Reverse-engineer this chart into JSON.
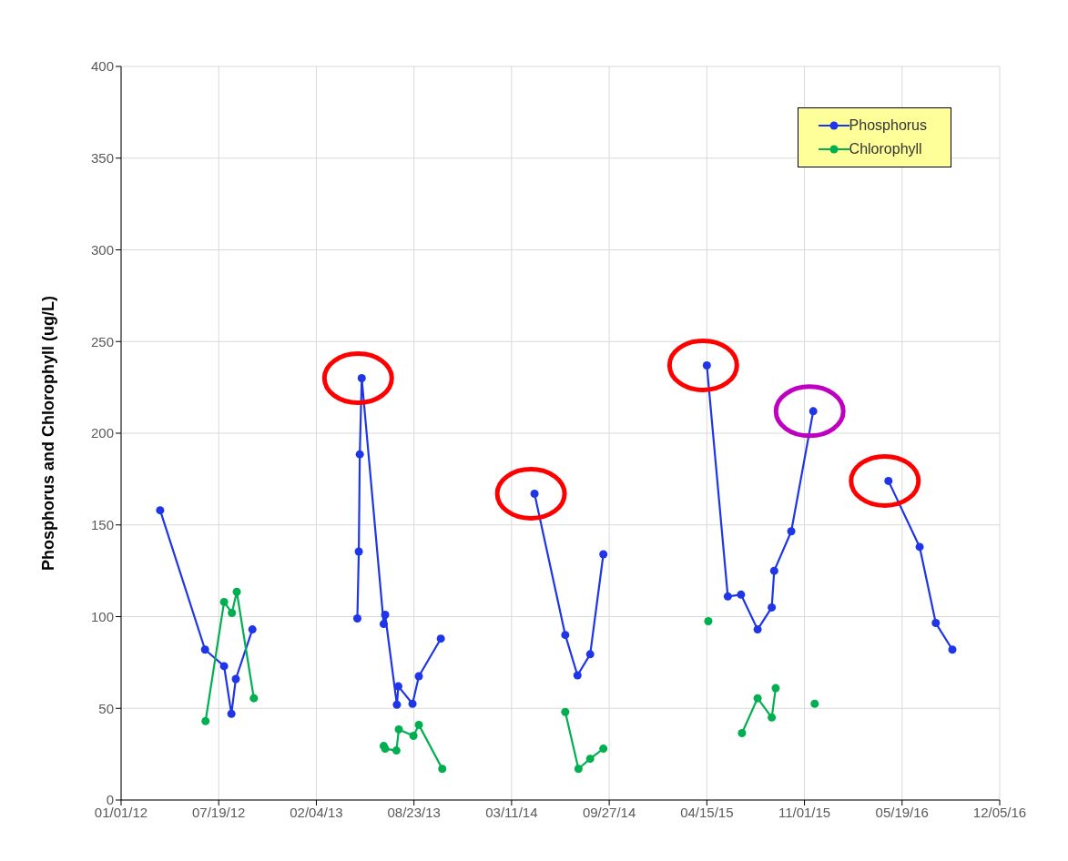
{
  "chart_data": {
    "type": "line",
    "ylabel": "Phosphorus and Chlorophyll (ug/L)",
    "ylim": [
      0,
      400
    ],
    "yticks": [
      0,
      50,
      100,
      150,
      200,
      250,
      300,
      350,
      400
    ],
    "xlim": [
      "2012-01-01",
      "2016-12-05"
    ],
    "xticks": [
      {
        "value": "2012-01-01",
        "label": "01/01/12"
      },
      {
        "value": "2012-07-19",
        "label": "07/19/12"
      },
      {
        "value": "2013-02-04",
        "label": "02/04/13"
      },
      {
        "value": "2013-08-23",
        "label": "08/23/13"
      },
      {
        "value": "2014-03-11",
        "label": "03/11/14"
      },
      {
        "value": "2014-09-27",
        "label": "09/27/14"
      },
      {
        "value": "2015-04-15",
        "label": "04/15/15"
      },
      {
        "value": "2015-11-01",
        "label": "11/01/15"
      },
      {
        "value": "2016-05-19",
        "label": "05/19/16"
      },
      {
        "value": "2016-12-05",
        "label": "12/05/16"
      }
    ],
    "grid": true,
    "legend": "top right",
    "marker": "circle",
    "line_style": "solid",
    "series": [
      {
        "name": "Phosphorus",
        "color": "#1f35e8",
        "x": [
          "2012-03-21",
          "2012-06-21",
          "2012-07-30",
          "2012-08-14",
          "2012-08-23",
          "2012-09-26",
          "2013-01-01",
          "2013-04-29",
          "2013-05-02",
          "2013-05-04",
          "2013-05-08",
          "2013-06-22",
          "2013-06-25",
          "2013-07-19",
          "2013-07-22",
          "2013-08-20",
          "2013-09-02",
          "2013-10-17",
          "2014-01-01",
          "2014-04-27",
          "2014-06-29",
          "2014-07-24",
          "2014-08-19",
          "2014-09-15",
          "2015-01-01",
          "2015-04-15",
          "2015-05-28",
          "2015-06-24",
          "2015-07-28",
          "2015-08-26",
          "2015-08-31",
          "2015-10-05",
          "2015-11-19",
          "2016-01-01",
          "2016-04-21",
          "2016-06-24",
          "2016-07-27",
          "2016-08-30"
        ],
        "values": [
          158,
          82,
          73,
          47,
          66,
          93,
          null,
          99,
          135.5,
          188.5,
          230,
          96,
          101,
          52,
          62,
          52.5,
          67.5,
          88,
          null,
          167,
          90,
          68,
          79.5,
          134,
          null,
          237,
          111,
          112,
          93,
          105,
          125,
          146.5,
          212,
          null,
          174,
          138,
          96.5,
          82
        ]
      },
      {
        "name": "Chlorophyll",
        "color": "#00b050",
        "x": [
          "2012-06-22",
          "2012-07-30",
          "2012-08-15",
          "2012-08-25",
          "2012-09-29",
          "2013-01-01",
          "2013-06-22",
          "2013-06-25",
          "2013-07-18",
          "2013-07-23",
          "2013-08-22",
          "2013-09-02",
          "2013-10-20",
          "2014-01-01",
          "2014-06-29",
          "2014-07-26",
          "2014-08-19",
          "2014-09-15",
          "2015-01-01",
          "2015-04-18",
          "2015-05-15",
          "2015-06-26",
          "2015-07-28",
          "2015-08-26",
          "2015-09-03",
          "2015-10-20",
          "2015-11-22"
        ],
        "values": [
          43,
          108,
          102,
          113.5,
          55.5,
          null,
          29.5,
          28,
          27,
          38.5,
          35,
          41,
          17,
          null,
          48,
          17,
          22.5,
          28,
          null,
          97.5,
          null,
          36.5,
          55.5,
          45,
          61,
          null,
          52.5
        ]
      }
    ]
  }
}
